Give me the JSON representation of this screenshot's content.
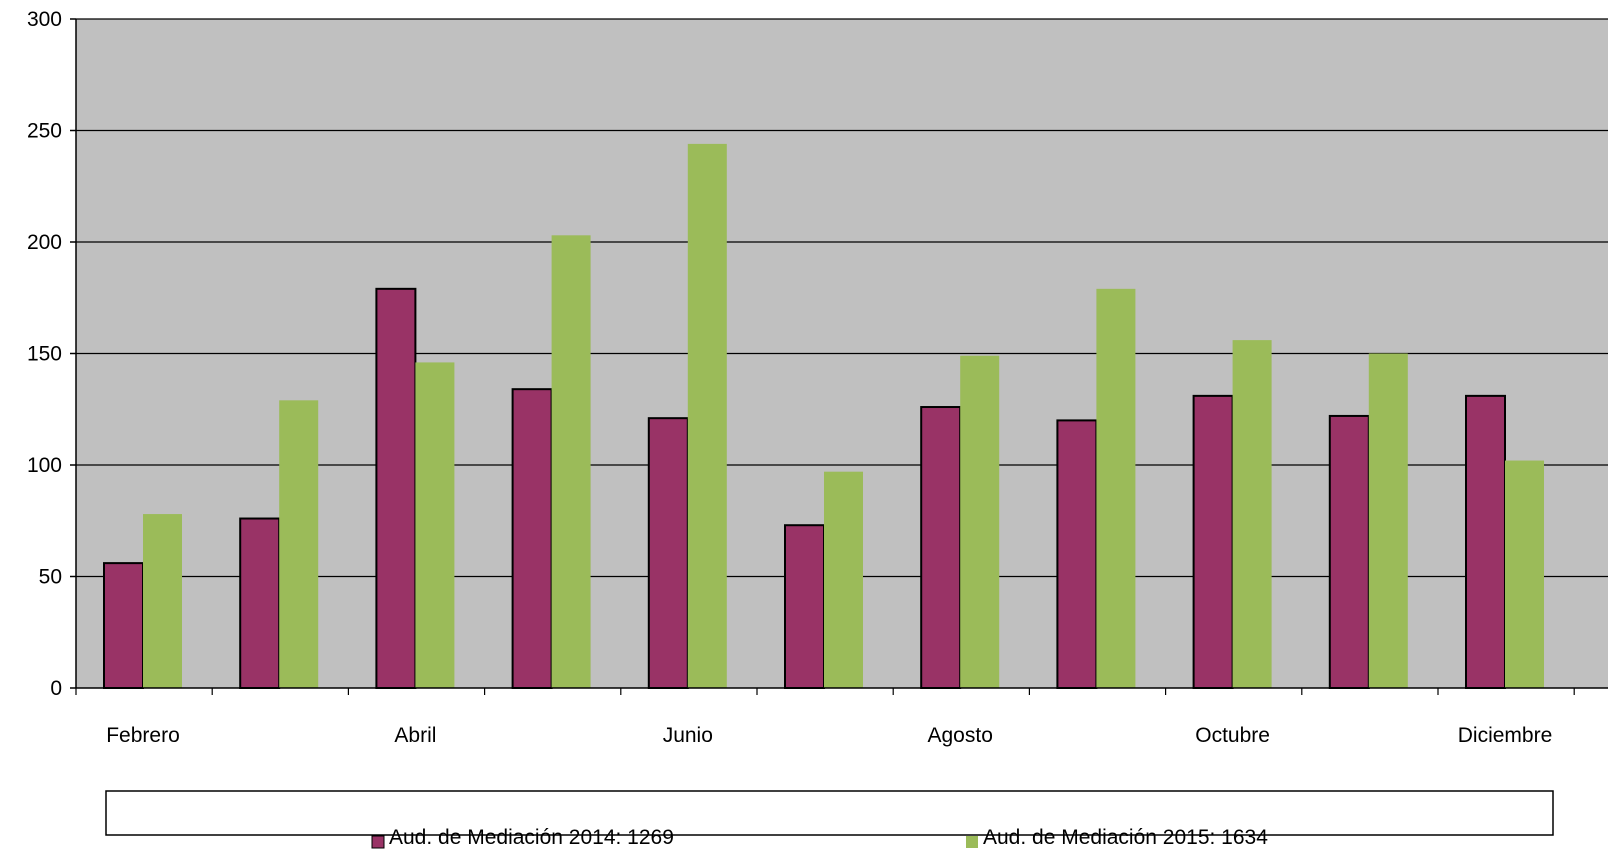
{
  "chart_data": {
    "type": "bar",
    "x_tick_labels": [
      "Febrero",
      "",
      "Abril",
      "",
      "Junio",
      "",
      "Agosto",
      "",
      "Octubre",
      "",
      "Diciembre"
    ],
    "series": [
      {
        "name": "Aud. de Mediación 2014: 1269",
        "color": "#993366",
        "values": [
          56,
          76,
          179,
          134,
          121,
          73,
          126,
          120,
          131,
          122,
          131
        ]
      },
      {
        "name": "Aud. de Mediación 2015: 1634",
        "color": "#9BBB59",
        "values": [
          78,
          129,
          146,
          203,
          244,
          97,
          149,
          179,
          156,
          150,
          102
        ]
      }
    ],
    "ylim": [
      0,
      300
    ],
    "yticks": [
      0,
      50,
      100,
      150,
      200,
      250,
      300
    ],
    "grid": true,
    "plot_background": "#C0C0C0",
    "legend_position": "bottom"
  }
}
